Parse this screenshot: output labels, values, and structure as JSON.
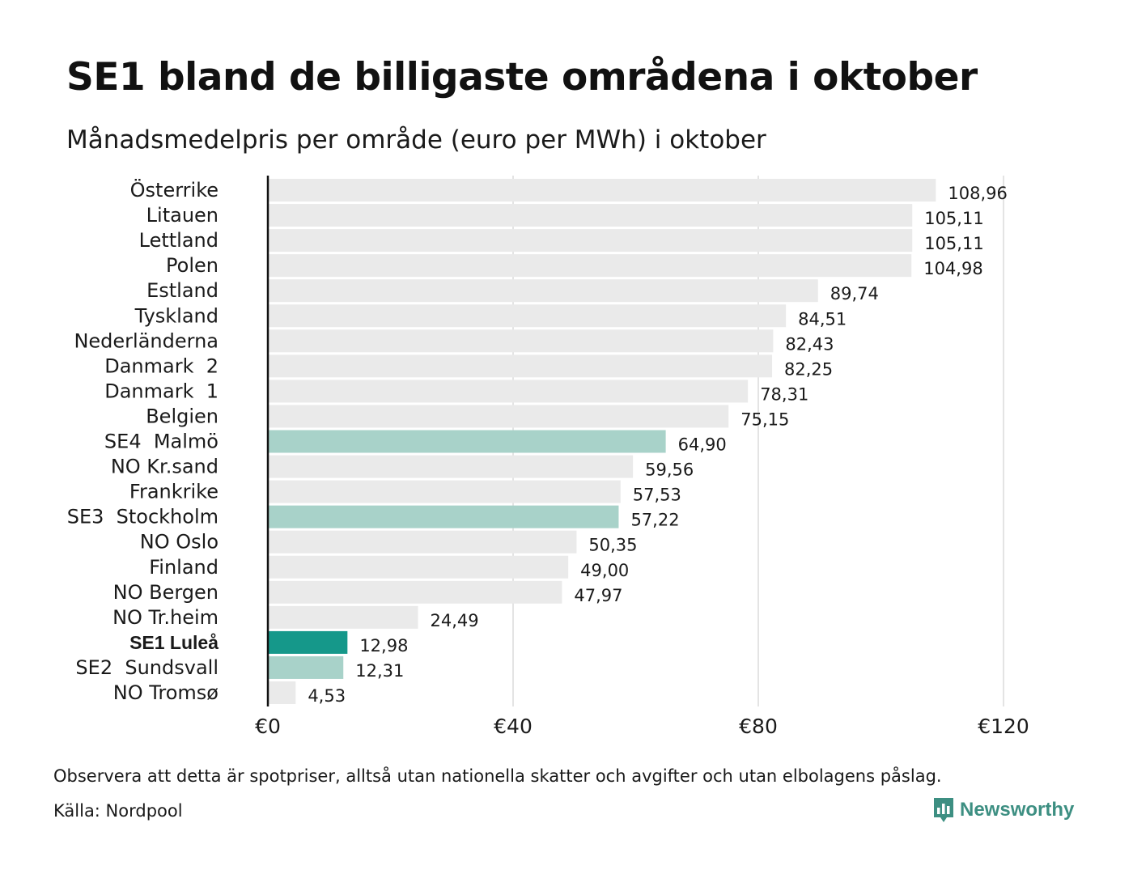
{
  "title": "SE1 bland de billigaste områdena i oktober",
  "subtitle": "Månadsmedelpris per område (euro per MWh) i oktober",
  "note": "Observera att detta är spotpriser, alltså utan nationella skatter och avgifter och utan elbolagens påslag.",
  "source": "Källa: Nordpool",
  "brand": {
    "name": "Newsworthy",
    "color": "#3d8f82"
  },
  "colors": {
    "default": "#eaeaea",
    "se_other": "#a8d2c9",
    "se1": "#15988a",
    "grid": "#c8c8c8",
    "axis": "#111111"
  },
  "chart_data": {
    "type": "bar",
    "orientation": "horizontal",
    "categories": [
      "Österrike",
      "Litauen",
      "Lettland",
      "Polen",
      "Estland",
      "Tyskland",
      "Nederländerna",
      "Danmark  2",
      "Danmark  1",
      "Belgien",
      "SE4  Malmö",
      "NO Kr.sand",
      "Frankrike",
      "SE3  Stockholm",
      "NO Oslo",
      "Finland",
      "NO Bergen",
      "NO Tr.heim",
      "SE1 Luleå",
      "SE2  Sundsvall",
      "NO Tromsø"
    ],
    "values": [
      108.96,
      105.11,
      105.11,
      104.98,
      89.74,
      84.51,
      82.43,
      82.25,
      78.31,
      75.15,
      64.9,
      59.56,
      57.53,
      57.22,
      50.35,
      49.0,
      47.97,
      24.49,
      12.98,
      12.31,
      4.53
    ],
    "value_labels": [
      "108,96",
      "105,11",
      "105,11",
      "104,98",
      "89,74",
      "84,51",
      "82,43",
      "82,25",
      "78,31",
      "75,15",
      "64,90",
      "59,56",
      "57,53",
      "57,22",
      "50,35",
      "49,00",
      "47,97",
      "24,49",
      "12,98",
      "12,31",
      "4,53"
    ],
    "highlight": [
      "default",
      "default",
      "default",
      "default",
      "default",
      "default",
      "default",
      "default",
      "default",
      "default",
      "se_other",
      "default",
      "default",
      "se_other",
      "default",
      "default",
      "default",
      "default",
      "se1",
      "se_other",
      "default"
    ],
    "xticks": [
      0,
      40,
      80,
      120
    ],
    "xtick_labels": [
      "€0",
      "€40",
      "€80",
      "€120"
    ],
    "xlim": [
      0,
      120
    ],
    "xlabel": "",
    "ylabel": "",
    "grid": true,
    "unit": "euro per MWh"
  }
}
